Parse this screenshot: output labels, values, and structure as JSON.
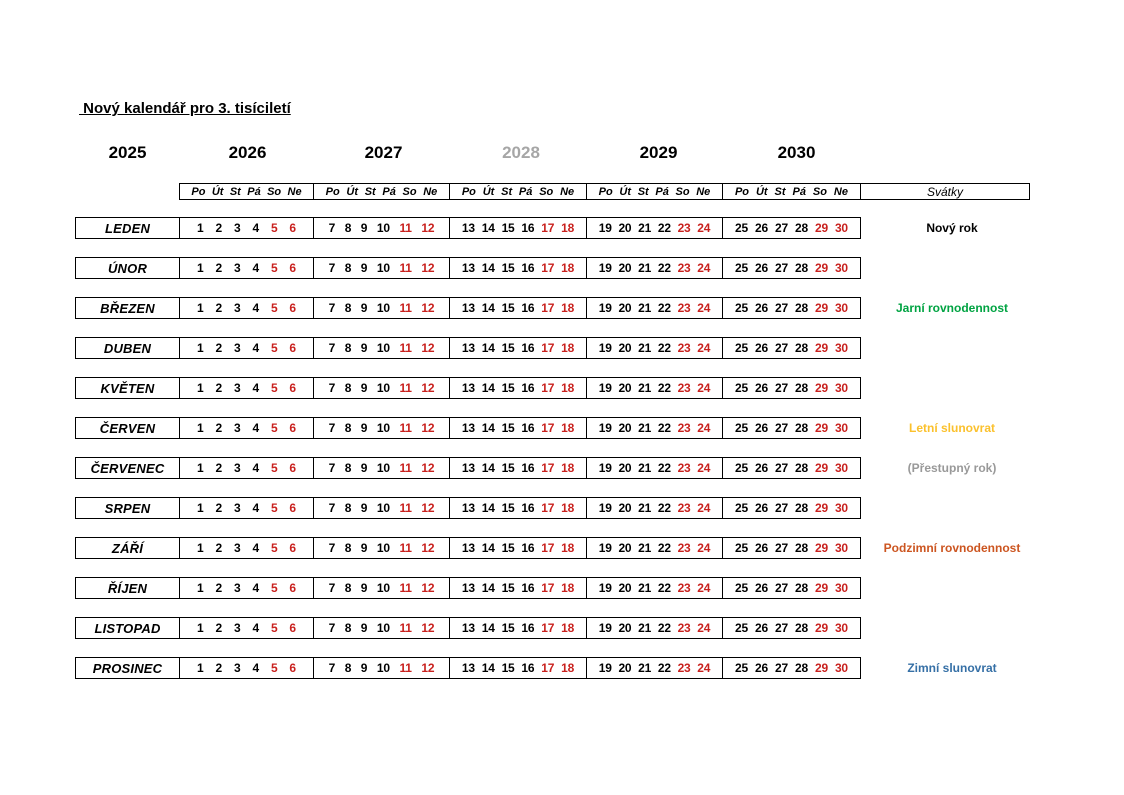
{
  "title": " Nový kalendář pro 3. tisíciletí",
  "years": [
    {
      "label": "2025",
      "muted": false
    },
    {
      "label": "2026",
      "muted": false
    },
    {
      "label": "2027",
      "muted": false
    },
    {
      "label": "2028",
      "muted": true
    },
    {
      "label": "2029",
      "muted": false
    },
    {
      "label": "2030",
      "muted": false
    }
  ],
  "week_days": [
    "Po",
    "Út",
    "St",
    "Pá",
    "So",
    "Ne"
  ],
  "weekend_positions": [
    4,
    5
  ],
  "holidays_header": "Svátky",
  "day_groups": [
    [
      1,
      2,
      3,
      4,
      5,
      6
    ],
    [
      7,
      8,
      9,
      10,
      11,
      12
    ],
    [
      13,
      14,
      15,
      16,
      17,
      18
    ],
    [
      19,
      20,
      21,
      22,
      23,
      24
    ],
    [
      25,
      26,
      27,
      28,
      29,
      30
    ]
  ],
  "months": [
    {
      "name": "LEDEN",
      "holiday": "Nový rok",
      "holiday_color": "#000000"
    },
    {
      "name": "ÚNOR",
      "holiday": "",
      "holiday_color": ""
    },
    {
      "name": "BŘEZEN",
      "holiday": "Jarní rovnodennost",
      "holiday_color": "#00A342"
    },
    {
      "name": "DUBEN",
      "holiday": "",
      "holiday_color": ""
    },
    {
      "name": "KVĚTEN",
      "holiday": "",
      "holiday_color": ""
    },
    {
      "name": "ČERVEN",
      "holiday": "Letní slunovrat",
      "holiday_color": "#FBC12D"
    },
    {
      "name": "ČERVENEC",
      "holiday": "(Přestupný rok)",
      "holiday_color": "#999999"
    },
    {
      "name": "SRPEN",
      "holiday": "",
      "holiday_color": ""
    },
    {
      "name": "ZÁŘÍ",
      "holiday": "Podzimní rovnodennost",
      "holiday_color": "#CC5520"
    },
    {
      "name": "ŘÍJEN",
      "holiday": "",
      "holiday_color": ""
    },
    {
      "name": "LISTOPAD",
      "holiday": "",
      "holiday_color": ""
    },
    {
      "name": "PROSINEC",
      "holiday": "Zimní slunovrat",
      "holiday_color": "#3670A6"
    }
  ],
  "colors": {
    "weekend_number": "#C9211E",
    "muted_year": "#A6A6A6",
    "border": "#000000"
  }
}
